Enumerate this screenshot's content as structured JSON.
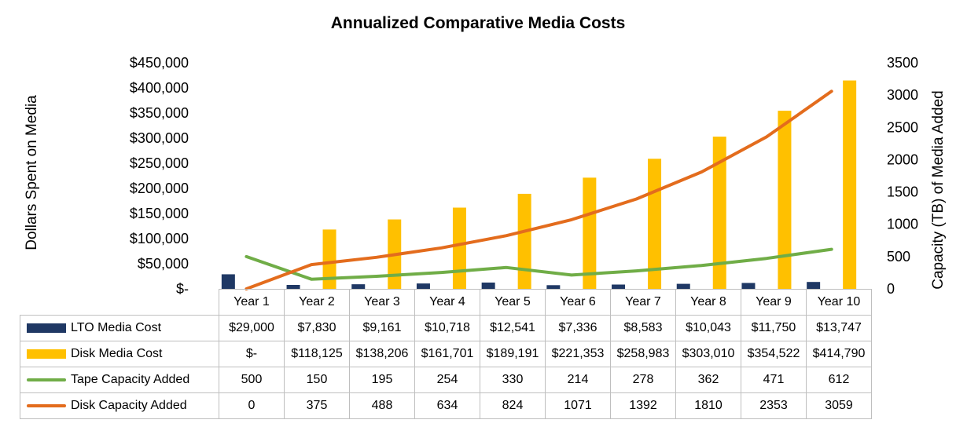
{
  "chart_data": {
    "type": "bar+line",
    "title": "Annualized Comparative Media Costs",
    "ylabel": "Dollars Spent on Media",
    "y2label": "Capacity (TB) of Media Added",
    "ylim": [
      0,
      450000
    ],
    "y2lim": [
      0,
      3500
    ],
    "yticks": [
      "$-",
      "$50,000",
      "$100,000",
      "$150,000",
      "$200,000",
      "$250,000",
      "$300,000",
      "$350,000",
      "$400,000",
      "$450,000"
    ],
    "y2ticks": [
      "0",
      "500",
      "1000",
      "1500",
      "2000",
      "2500",
      "3000",
      "3500"
    ],
    "categories": [
      "Year 1",
      "Year 2",
      "Year 3",
      "Year 4",
      "Year 5",
      "Year 6",
      "Year 7",
      "Year 8",
      "Year 9",
      "Year 10"
    ],
    "series": [
      {
        "name": "LTO Media Cost",
        "kind": "bar",
        "axis": "left",
        "color": "#1f3864",
        "values": [
          29000,
          7830,
          9161,
          10718,
          12541,
          7336,
          8583,
          10043,
          11750,
          13747
        ],
        "labels": [
          "$29,000",
          "$7,830",
          "$9,161",
          "$10,718",
          "$12,541",
          "$7,336",
          "$8,583",
          "$10,043",
          "$11,750",
          "$13,747"
        ]
      },
      {
        "name": "Disk Media Cost",
        "kind": "bar",
        "axis": "left",
        "color": "#ffc000",
        "values": [
          0,
          118125,
          138206,
          161701,
          189191,
          221353,
          258983,
          303010,
          354522,
          414790
        ],
        "labels": [
          "$-",
          "$118,125",
          "$138,206",
          "$161,701",
          "$189,191",
          "$221,353",
          "$258,983",
          "$303,010",
          "$354,522",
          "$414,790"
        ]
      },
      {
        "name": "Tape Capacity Added",
        "kind": "line",
        "axis": "right",
        "color": "#70ad47",
        "values": [
          500,
          150,
          195,
          254,
          330,
          214,
          278,
          362,
          471,
          612
        ],
        "labels": [
          "500",
          "150",
          "195",
          "254",
          "330",
          "214",
          "278",
          "362",
          "471",
          "612"
        ]
      },
      {
        "name": "Disk Capacity Added",
        "kind": "line",
        "axis": "right",
        "color": "#e36c1d",
        "values": [
          0,
          375,
          488,
          634,
          824,
          1071,
          1392,
          1810,
          2353,
          3059
        ],
        "labels": [
          "0",
          "375",
          "488",
          "634",
          "824",
          "1071",
          "1392",
          "1810",
          "2353",
          "3059"
        ]
      }
    ],
    "legend": "data-table"
  }
}
